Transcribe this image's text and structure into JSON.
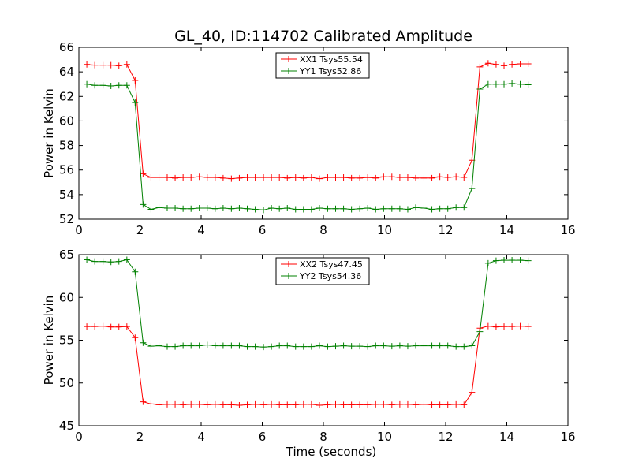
{
  "title": "GL_40, ID:114702 Calibrated Amplitude",
  "colors": {
    "red": "#ff0000",
    "green": "#008000",
    "axes": "#000000"
  },
  "chart_data": [
    {
      "type": "line",
      "xlabel": "",
      "ylabel": "Power in Kelvin",
      "xlim": [
        0,
        16
      ],
      "ylim": [
        52,
        66
      ],
      "xticks": [
        0,
        2,
        4,
        6,
        8,
        10,
        12,
        14,
        16
      ],
      "yticks": [
        52,
        54,
        56,
        58,
        60,
        62,
        64,
        66
      ],
      "grid": false,
      "legend_position": "top-center",
      "x": [
        0.26,
        0.52,
        0.79,
        1.05,
        1.31,
        1.57,
        1.84,
        2.1,
        2.36,
        2.62,
        2.89,
        3.15,
        3.41,
        3.67,
        3.94,
        4.2,
        4.46,
        4.72,
        4.99,
        5.25,
        5.51,
        5.77,
        6.04,
        6.3,
        6.56,
        6.82,
        7.09,
        7.35,
        7.61,
        7.87,
        8.14,
        8.4,
        8.66,
        8.92,
        9.19,
        9.45,
        9.71,
        9.97,
        10.24,
        10.5,
        10.76,
        11.02,
        11.29,
        11.55,
        11.81,
        12.07,
        12.34,
        12.6,
        12.86,
        13.12,
        13.39,
        13.65,
        13.91,
        14.17,
        14.44,
        14.7
      ],
      "series": [
        {
          "name": "XX1 Tsys55.54",
          "color": "red",
          "values": [
            64.6,
            64.55,
            64.55,
            64.55,
            64.5,
            64.6,
            63.3,
            55.7,
            55.4,
            55.4,
            55.4,
            55.35,
            55.4,
            55.4,
            55.45,
            55.4,
            55.4,
            55.35,
            55.3,
            55.35,
            55.4,
            55.4,
            55.4,
            55.4,
            55.4,
            55.35,
            55.4,
            55.35,
            55.4,
            55.3,
            55.4,
            55.4,
            55.4,
            55.35,
            55.35,
            55.4,
            55.35,
            55.45,
            55.45,
            55.4,
            55.4,
            55.35,
            55.35,
            55.35,
            55.45,
            55.4,
            55.45,
            55.4,
            56.8,
            64.4,
            64.7,
            64.6,
            64.5,
            64.6,
            64.65,
            64.65
          ]
        },
        {
          "name": "YY1 Tsys52.86",
          "color": "green",
          "values": [
            63.0,
            62.9,
            62.9,
            62.85,
            62.9,
            62.9,
            61.5,
            53.2,
            52.8,
            52.95,
            52.9,
            52.9,
            52.85,
            52.85,
            52.9,
            52.9,
            52.85,
            52.9,
            52.85,
            52.9,
            52.85,
            52.8,
            52.75,
            52.9,
            52.85,
            52.9,
            52.8,
            52.8,
            52.8,
            52.9,
            52.85,
            52.85,
            52.85,
            52.8,
            52.85,
            52.9,
            52.8,
            52.85,
            52.85,
            52.85,
            52.8,
            52.95,
            52.9,
            52.8,
            52.85,
            52.85,
            52.95,
            52.95,
            54.5,
            62.6,
            63.0,
            63.0,
            63.0,
            63.05,
            63.0,
            62.95
          ]
        }
      ]
    },
    {
      "type": "line",
      "xlabel": "Time (seconds)",
      "ylabel": "Power in Kelvin",
      "xlim": [
        0,
        16
      ],
      "ylim": [
        45,
        65
      ],
      "xticks": [
        0,
        2,
        4,
        6,
        8,
        10,
        12,
        14,
        16
      ],
      "yticks": [
        45,
        50,
        55,
        60,
        65
      ],
      "grid": false,
      "legend_position": "top-center",
      "x": [
        0.26,
        0.52,
        0.79,
        1.05,
        1.31,
        1.57,
        1.84,
        2.1,
        2.36,
        2.62,
        2.89,
        3.15,
        3.41,
        3.67,
        3.94,
        4.2,
        4.46,
        4.72,
        4.99,
        5.25,
        5.51,
        5.77,
        6.04,
        6.3,
        6.56,
        6.82,
        7.09,
        7.35,
        7.61,
        7.87,
        8.14,
        8.4,
        8.66,
        8.92,
        9.19,
        9.45,
        9.71,
        9.97,
        10.24,
        10.5,
        10.76,
        11.02,
        11.29,
        11.55,
        11.81,
        12.07,
        12.34,
        12.6,
        12.86,
        13.12,
        13.39,
        13.65,
        13.91,
        14.17,
        14.44,
        14.7
      ],
      "series": [
        {
          "name": "XX2 Tsys47.45",
          "color": "red",
          "values": [
            56.6,
            56.6,
            56.65,
            56.55,
            56.55,
            56.6,
            55.3,
            47.8,
            47.55,
            47.45,
            47.5,
            47.5,
            47.45,
            47.5,
            47.5,
            47.45,
            47.5,
            47.45,
            47.45,
            47.4,
            47.45,
            47.5,
            47.45,
            47.5,
            47.45,
            47.45,
            47.45,
            47.5,
            47.5,
            47.4,
            47.45,
            47.5,
            47.45,
            47.45,
            47.45,
            47.45,
            47.5,
            47.5,
            47.45,
            47.5,
            47.5,
            47.45,
            47.5,
            47.45,
            47.45,
            47.45,
            47.5,
            47.45,
            48.9,
            56.4,
            56.65,
            56.55,
            56.6,
            56.6,
            56.65,
            56.6
          ]
        },
        {
          "name": "YY2 Tsys54.36",
          "color": "green",
          "values": [
            64.4,
            64.2,
            64.2,
            64.15,
            64.2,
            64.4,
            63.0,
            54.7,
            54.3,
            54.35,
            54.25,
            54.25,
            54.35,
            54.35,
            54.35,
            54.45,
            54.35,
            54.35,
            54.35,
            54.35,
            54.25,
            54.25,
            54.2,
            54.25,
            54.35,
            54.35,
            54.25,
            54.25,
            54.25,
            54.35,
            54.25,
            54.3,
            54.35,
            54.3,
            54.3,
            54.25,
            54.35,
            54.35,
            54.3,
            54.35,
            54.3,
            54.35,
            54.35,
            54.35,
            54.35,
            54.35,
            54.25,
            54.25,
            54.35,
            56.0,
            64.0,
            64.3,
            64.35,
            64.35,
            64.35,
            64.3
          ]
        }
      ]
    }
  ]
}
